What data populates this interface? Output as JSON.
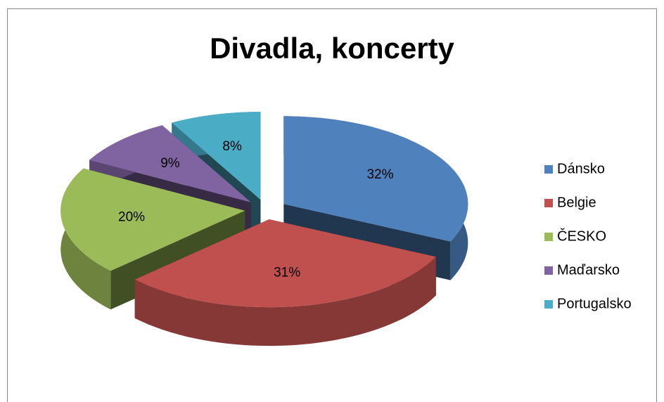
{
  "chart_data": {
    "type": "pie3d",
    "title": "Divadla, koncerty",
    "categories": [
      "Dánsko",
      "Belgie",
      "ČESKO",
      "Maďarsko",
      "Portugalsko"
    ],
    "values": [
      32,
      31,
      20,
      9,
      8
    ],
    "value_labels": [
      "32%",
      "31%",
      "20%",
      "9%",
      "8%"
    ],
    "colors": [
      "#4f81bd",
      "#c0504d",
      "#9bbb59",
      "#8064a2",
      "#4bacc6"
    ],
    "legend": "right"
  }
}
